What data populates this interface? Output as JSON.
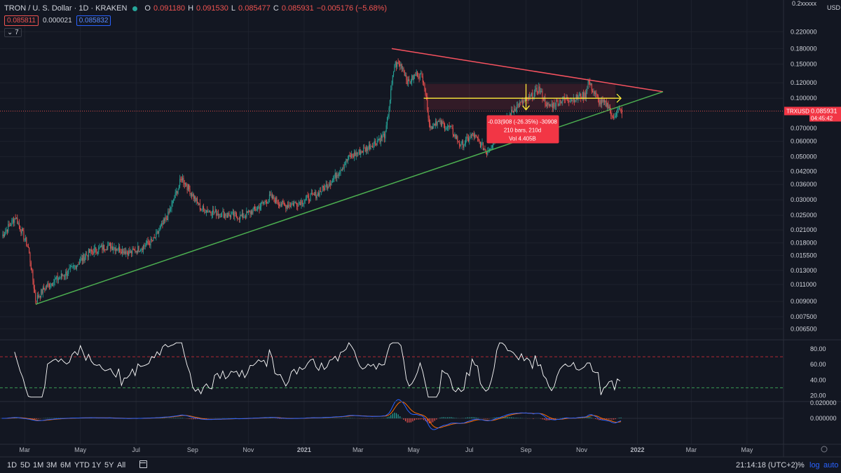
{
  "header": {
    "symbol": "TRON / U. S. Dollar · 1D · KRAKEN",
    "o_label": "O",
    "o_value": "0.091180",
    "h_label": "H",
    "h_value": "0.091530",
    "l_label": "L",
    "l_value": "0.085477",
    "c_label": "C",
    "c_value": "0.085931",
    "change": "−0.005176 (−5.68%)",
    "bid": "0.085811",
    "spread": "0.000021",
    "ask": "0.085832",
    "collapse_count": "7"
  },
  "price_axis": {
    "currency_top": "0.2xxxxx",
    "currency": "USD",
    "ticks": [
      "0.220000",
      "0.180000",
      "0.150000",
      "0.120000",
      "0.100000",
      "0.070000",
      "0.060000",
      "0.050000",
      "0.042000",
      "0.036000",
      "0.030000",
      "0.025000",
      "0.021000",
      "0.018000",
      "0.015500",
      "0.013000",
      "0.011000",
      "0.009000",
      "0.007500",
      "0.006500"
    ],
    "last_symbol": "TRXUSD",
    "last_price": "0.085931",
    "countdown": "04:45:42"
  },
  "rsi_axis": {
    "ticks": [
      "80.00",
      "60.00",
      "40.00",
      "20.00"
    ]
  },
  "macd_axis": {
    "ticks": [
      "0.020000",
      "0.000000"
    ]
  },
  "time_axis": [
    "Mar",
    "May",
    "Jul",
    "Sep",
    "Nov",
    "2021",
    "Mar",
    "May",
    "Jul",
    "Sep",
    "Nov",
    "2022",
    "Mar",
    "May"
  ],
  "measure_tool": {
    "line1": "-0.03(908 (-26.35%) -30908",
    "line2": "210 bars, 210d",
    "line3": "Vol 4.405B"
  },
  "bottom": {
    "timeframes": [
      "1D",
      "5D",
      "1M",
      "3M",
      "6M",
      "YTD",
      "1Y",
      "5Y",
      "All"
    ],
    "clock": "21:14:18 (UTC+2)",
    "percent": "%",
    "log": "log",
    "auto": "auto"
  },
  "colors": {
    "background": "#131722",
    "up": "#26a69a",
    "down": "#ef5350",
    "resistance": "#f7525f",
    "support": "#4caf50",
    "arrow": "#ffeb3b",
    "rsi_line": "#ffffff",
    "macd_line": "#2962ff",
    "signal_line": "#ff6d00"
  },
  "chart_data": {
    "type": "candlestick",
    "title": "TRON / U. S. Dollar · 1D · KRAKEN",
    "scale": "log",
    "ylim": [
      0.0058,
      0.29
    ],
    "xlim": [
      "2020-02-03",
      "2022-06-10"
    ],
    "price_keypoints": [
      [
        "2020-02-05",
        0.0195
      ],
      [
        "2020-02-20",
        0.0245
      ],
      [
        "2020-03-05",
        0.017
      ],
      [
        "2020-03-13",
        0.0092
      ],
      [
        "2020-03-25",
        0.0108
      ],
      [
        "2020-04-20",
        0.013
      ],
      [
        "2020-05-10",
        0.016
      ],
      [
        "2020-06-01",
        0.0175
      ],
      [
        "2020-06-25",
        0.016
      ],
      [
        "2020-07-20",
        0.0185
      ],
      [
        "2020-08-05",
        0.025
      ],
      [
        "2020-08-20",
        0.039
      ],
      [
        "2020-08-28",
        0.034
      ],
      [
        "2020-09-10",
        0.027
      ],
      [
        "2020-10-01",
        0.0255
      ],
      [
        "2020-10-25",
        0.0245
      ],
      [
        "2020-11-10",
        0.027
      ],
      [
        "2020-11-25",
        0.031
      ],
      [
        "2020-12-10",
        0.028
      ],
      [
        "2020-12-25",
        0.029
      ],
      [
        "2021-01-15",
        0.032
      ],
      [
        "2021-02-01",
        0.038
      ],
      [
        "2021-02-20",
        0.05
      ],
      [
        "2021-03-10",
        0.055
      ],
      [
        "2021-03-31",
        0.065
      ],
      [
        "2021-04-10",
        0.15
      ],
      [
        "2021-04-18",
        0.148
      ],
      [
        "2021-04-25",
        0.12
      ],
      [
        "2021-05-05",
        0.135
      ],
      [
        "2021-05-12",
        0.125
      ],
      [
        "2021-05-19",
        0.07
      ],
      [
        "2021-05-25",
        0.076
      ],
      [
        "2021-06-10",
        0.07
      ],
      [
        "2021-06-22",
        0.057
      ],
      [
        "2021-07-05",
        0.065
      ],
      [
        "2021-07-20",
        0.053
      ],
      [
        "2021-08-05",
        0.07
      ],
      [
        "2021-08-20",
        0.09
      ],
      [
        "2021-09-05",
        0.1
      ],
      [
        "2021-09-15",
        0.112
      ],
      [
        "2021-09-25",
        0.09
      ],
      [
        "2021-10-10",
        0.098
      ],
      [
        "2021-10-25",
        0.1
      ],
      [
        "2021-11-05",
        0.104
      ],
      [
        "2021-11-08",
        0.122
      ],
      [
        "2021-11-20",
        0.096
      ],
      [
        "2021-12-01",
        0.092
      ],
      [
        "2021-12-04",
        0.078
      ],
      [
        "2021-12-10",
        0.087
      ],
      [
        "2021-12-15",
        0.0859
      ]
    ],
    "drawings": {
      "resistance_line": [
        [
          "2021-04-07",
          0.18
        ],
        [
          "2022-01-29",
          0.108
        ]
      ],
      "support_line": [
        [
          "2020-03-13",
          0.0087
        ],
        [
          "2022-01-29",
          0.108
        ]
      ],
      "horizontal_arrow": [
        [
          "2021-05-12",
          0.1
        ],
        [
          "2021-12-14",
          0.1
        ]
      ],
      "measure_range": {
        "from": "2021-05-12",
        "to": "2021-12-08",
        "price_from": 0.1185,
        "price_to": 0.0872
      }
    },
    "rsi": {
      "overbought": 70,
      "oversold": 30,
      "last": 40
    },
    "macd": {
      "last": -0.0002
    }
  }
}
